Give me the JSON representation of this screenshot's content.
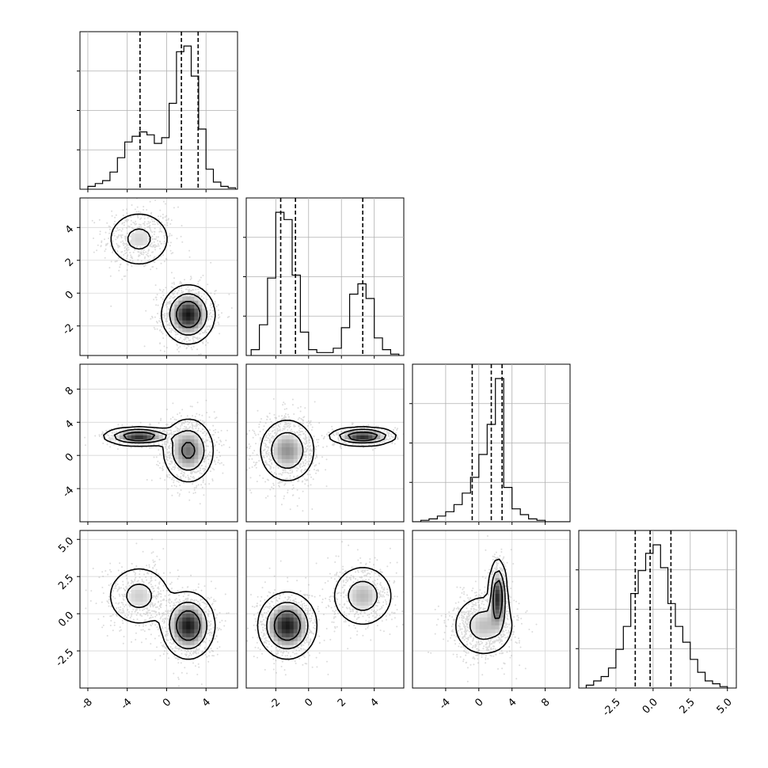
{
  "chart_data": {
    "type": "corner",
    "grid": true,
    "colors": {
      "line": "#000000",
      "grid": "#b0b0b0",
      "scatter": "#9a9a9a"
    },
    "params": [
      {
        "range": [
          -8.8,
          7.2
        ],
        "ticks": [
          "-8",
          "-4",
          "0",
          "4"
        ],
        "tick_values": [
          -8,
          -4,
          0,
          4
        ],
        "quantiles": [
          -2.7,
          1.5,
          3.2
        ],
        "modes": [
          {
            "w": 0.35,
            "mu": -2.8,
            "s": 1.6
          },
          {
            "w": 0.65,
            "mu": 2.2,
            "s": 1.2
          }
        ],
        "hist": {
          "bin_edges": [
            -8.0,
            -7.25,
            -6.5,
            -5.75,
            -5.0,
            -4.25,
            -3.5,
            -2.75,
            -2.0,
            -1.25,
            -0.5,
            0.25,
            1.0,
            1.75,
            2.5,
            3.25,
            4.0,
            4.75,
            5.5,
            6.25,
            7.0
          ],
          "counts": [
            0.02,
            0.04,
            0.06,
            0.12,
            0.22,
            0.33,
            0.37,
            0.4,
            0.38,
            0.32,
            0.36,
            0.6,
            0.96,
            1.0,
            0.79,
            0.42,
            0.14,
            0.05,
            0.02,
            0.01
          ]
        }
      },
      {
        "range": [
          -3.8,
          5.8
        ],
        "ticks": [
          "-2",
          "0",
          "2",
          "4"
        ],
        "tick_values": [
          -2,
          0,
          2,
          4
        ],
        "quantiles": [
          -1.7,
          -0.8,
          3.3
        ],
        "modes": [
          {
            "w": 0.65,
            "mu": -1.3,
            "s": 0.8
          },
          {
            "w": 0.35,
            "mu": 3.3,
            "s": 0.9
          }
        ],
        "hist": {
          "bin_edges": [
            -3.5,
            -3.0,
            -2.5,
            -2.0,
            -1.5,
            -1.0,
            -0.5,
            0.0,
            0.5,
            1.0,
            1.5,
            2.0,
            2.5,
            3.0,
            3.5,
            4.0,
            4.5,
            5.0,
            5.5
          ],
          "counts": [
            0.04,
            0.21,
            0.53,
            0.98,
            0.93,
            0.55,
            0.16,
            0.04,
            0.02,
            0.02,
            0.05,
            0.19,
            0.42,
            0.49,
            0.39,
            0.12,
            0.04,
            0.01
          ]
        }
      },
      {
        "range": [
          -8.0,
          11.0
        ],
        "ticks": [
          "-4",
          "0",
          "4",
          "8"
        ],
        "tick_values": [
          -4,
          0,
          4,
          8
        ],
        "quantiles": [
          -0.8,
          1.5,
          2.8
        ],
        "modes": [
          {
            "w": 0.6,
            "mu": 0.6,
            "s": 1.8
          },
          {
            "w": 0.4,
            "mu": 2.3,
            "s": 0.5
          }
        ],
        "hist": {
          "bin_edges": [
            -8.0,
            -7.0,
            -6.0,
            -5.0,
            -4.0,
            -3.0,
            -2.0,
            -1.0,
            0.0,
            1.0,
            2.0,
            3.0,
            4.0,
            5.0,
            6.0,
            7.0,
            8.0,
            9.0,
            10.0,
            11.0
          ],
          "counts": [
            0.0,
            0.01,
            0.02,
            0.04,
            0.07,
            0.12,
            0.2,
            0.31,
            0.47,
            0.68,
            1.0,
            0.24,
            0.09,
            0.05,
            0.02,
            0.01,
            0.0,
            0.0,
            0.0
          ]
        }
      },
      {
        "range": [
          -5.0,
          5.6
        ],
        "ticks": [
          "-2.5",
          "0.0",
          "2.5",
          "5.0"
        ],
        "tick_values": [
          -2.5,
          0.0,
          2.5,
          5.0
        ],
        "quantiles": [
          -1.2,
          -0.2,
          1.2
        ],
        "modes": [
          {
            "w": 1.0,
            "mu": -0.1,
            "s": 1.2
          }
        ],
        "hist": {
          "bin_edges": [
            -4.5,
            -4.0,
            -3.5,
            -3.0,
            -2.5,
            -2.0,
            -1.5,
            -1.0,
            -0.5,
            0.0,
            0.5,
            1.0,
            1.5,
            2.0,
            2.5,
            3.0,
            3.5,
            4.0,
            4.5,
            5.0
          ],
          "counts": [
            0.02,
            0.05,
            0.08,
            0.14,
            0.27,
            0.43,
            0.66,
            0.82,
            0.94,
            1.0,
            0.84,
            0.59,
            0.43,
            0.32,
            0.2,
            0.11,
            0.05,
            0.03,
            0.01
          ]
        }
      }
    ],
    "pairs": [
      {
        "row": 1,
        "col": 0,
        "comps": [
          {
            "w": 0.35,
            "mx": -2.8,
            "my": 3.3,
            "sx": 1.6,
            "sy": 0.85
          },
          {
            "w": 0.65,
            "mx": 2.2,
            "my": -1.3,
            "sx": 1.2,
            "sy": 0.8
          }
        ]
      },
      {
        "row": 2,
        "col": 0,
        "comps": [
          {
            "w": 0.35,
            "mx": -2.8,
            "my": 2.3,
            "sx": 1.6,
            "sy": 0.5
          },
          {
            "w": 0.65,
            "mx": 2.2,
            "my": 0.6,
            "sx": 1.2,
            "sy": 1.8
          }
        ]
      },
      {
        "row": 2,
        "col": 1,
        "comps": [
          {
            "w": 0.65,
            "mx": -1.3,
            "my": 0.6,
            "sx": 0.8,
            "sy": 1.8
          },
          {
            "w": 0.35,
            "mx": 3.3,
            "my": 2.3,
            "sx": 0.9,
            "sy": 0.5
          }
        ]
      },
      {
        "row": 3,
        "col": 0,
        "comps": [
          {
            "w": 0.35,
            "mx": -2.8,
            "my": 1.2,
            "sx": 1.6,
            "sy": 1.0
          },
          {
            "w": 0.65,
            "mx": 2.2,
            "my": -0.8,
            "sx": 1.2,
            "sy": 1.0
          }
        ]
      },
      {
        "row": 3,
        "col": 1,
        "comps": [
          {
            "w": 0.65,
            "mx": -1.3,
            "my": -0.8,
            "sx": 0.8,
            "sy": 1.0
          },
          {
            "w": 0.35,
            "mx": 3.3,
            "my": 1.2,
            "sx": 0.9,
            "sy": 1.0
          }
        ]
      },
      {
        "row": 3,
        "col": 2,
        "comps": [
          {
            "w": 0.6,
            "mx": 0.6,
            "my": -0.8,
            "sx": 1.8,
            "sy": 1.0
          },
          {
            "w": 0.4,
            "mx": 2.3,
            "my": 1.2,
            "sx": 0.5,
            "sy": 1.1
          }
        ]
      }
    ]
  }
}
